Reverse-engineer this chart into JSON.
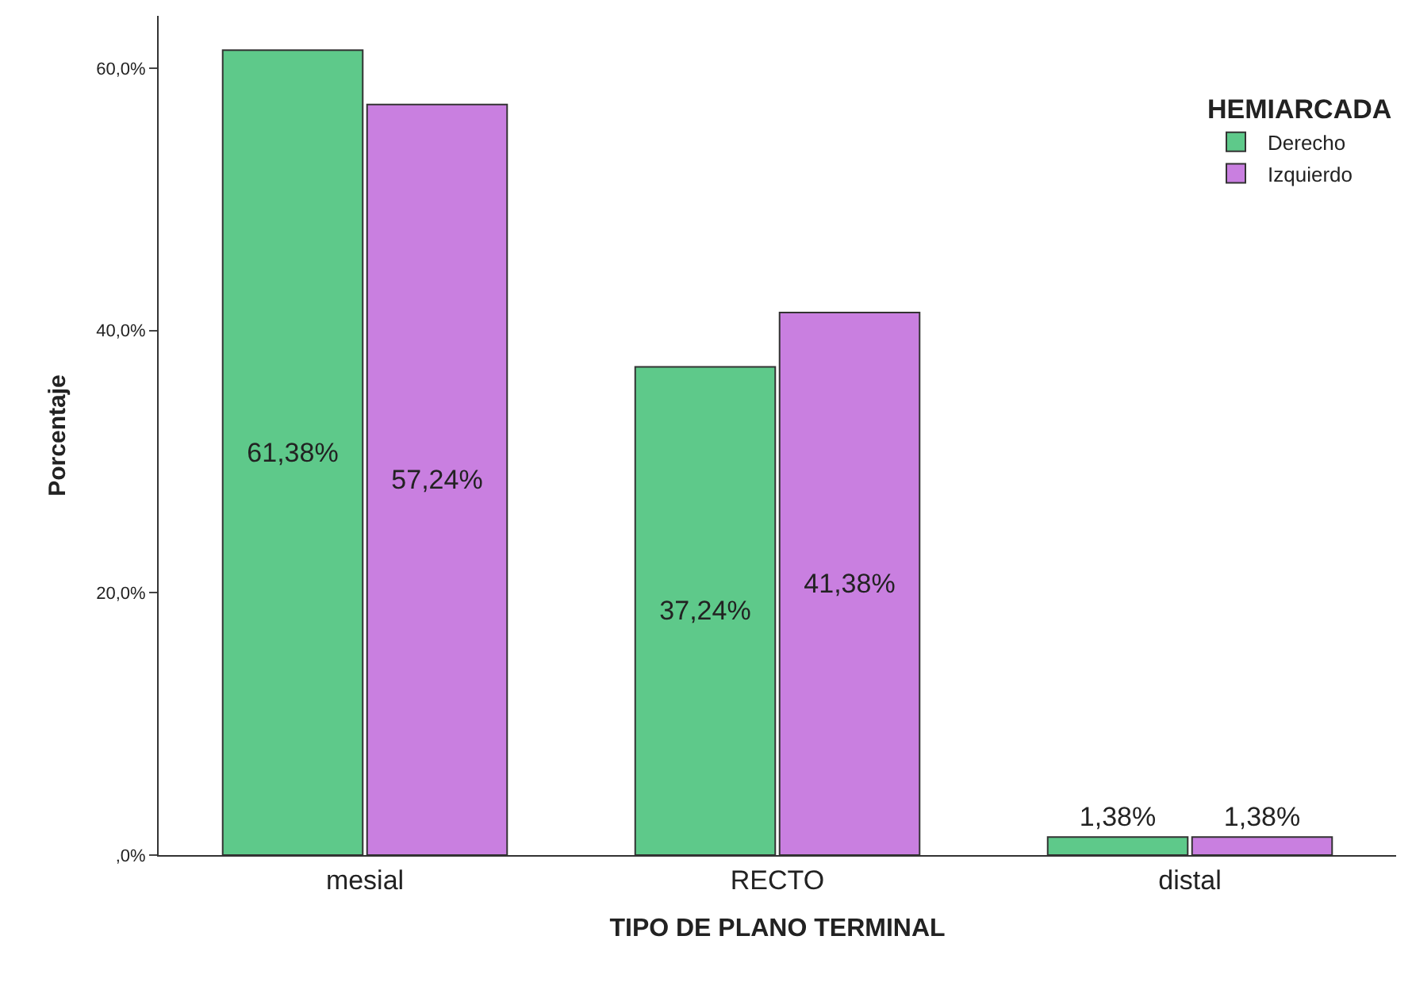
{
  "chart_data": {
    "type": "bar",
    "xlabel": "TIPO DE PLANO TERMINAL",
    "ylabel": "Porcentaje",
    "legend_title": "HEMIARCADA",
    "categories": [
      "mesial",
      "RECTO",
      "distal"
    ],
    "series": [
      {
        "name": "Derecho",
        "color": "#5ec98a",
        "values": [
          61.38,
          37.24,
          1.38
        ],
        "value_labels": [
          "61,38%",
          "37,24%",
          "1,38%"
        ]
      },
      {
        "name": "Izquierdo",
        "color": "#c97fe0",
        "values": [
          57.24,
          41.38,
          1.38
        ],
        "value_labels": [
          "57,24%",
          "41,38%",
          "1,38%"
        ]
      }
    ],
    "ylim": [
      0,
      64
    ],
    "yticks": [
      {
        "value": 0,
        "label": ",0%"
      },
      {
        "value": 20,
        "label": "20,0%"
      },
      {
        "value": 40,
        "label": "40,0%"
      },
      {
        "value": 60,
        "label": "60,0%"
      }
    ],
    "legend": "top right"
  }
}
